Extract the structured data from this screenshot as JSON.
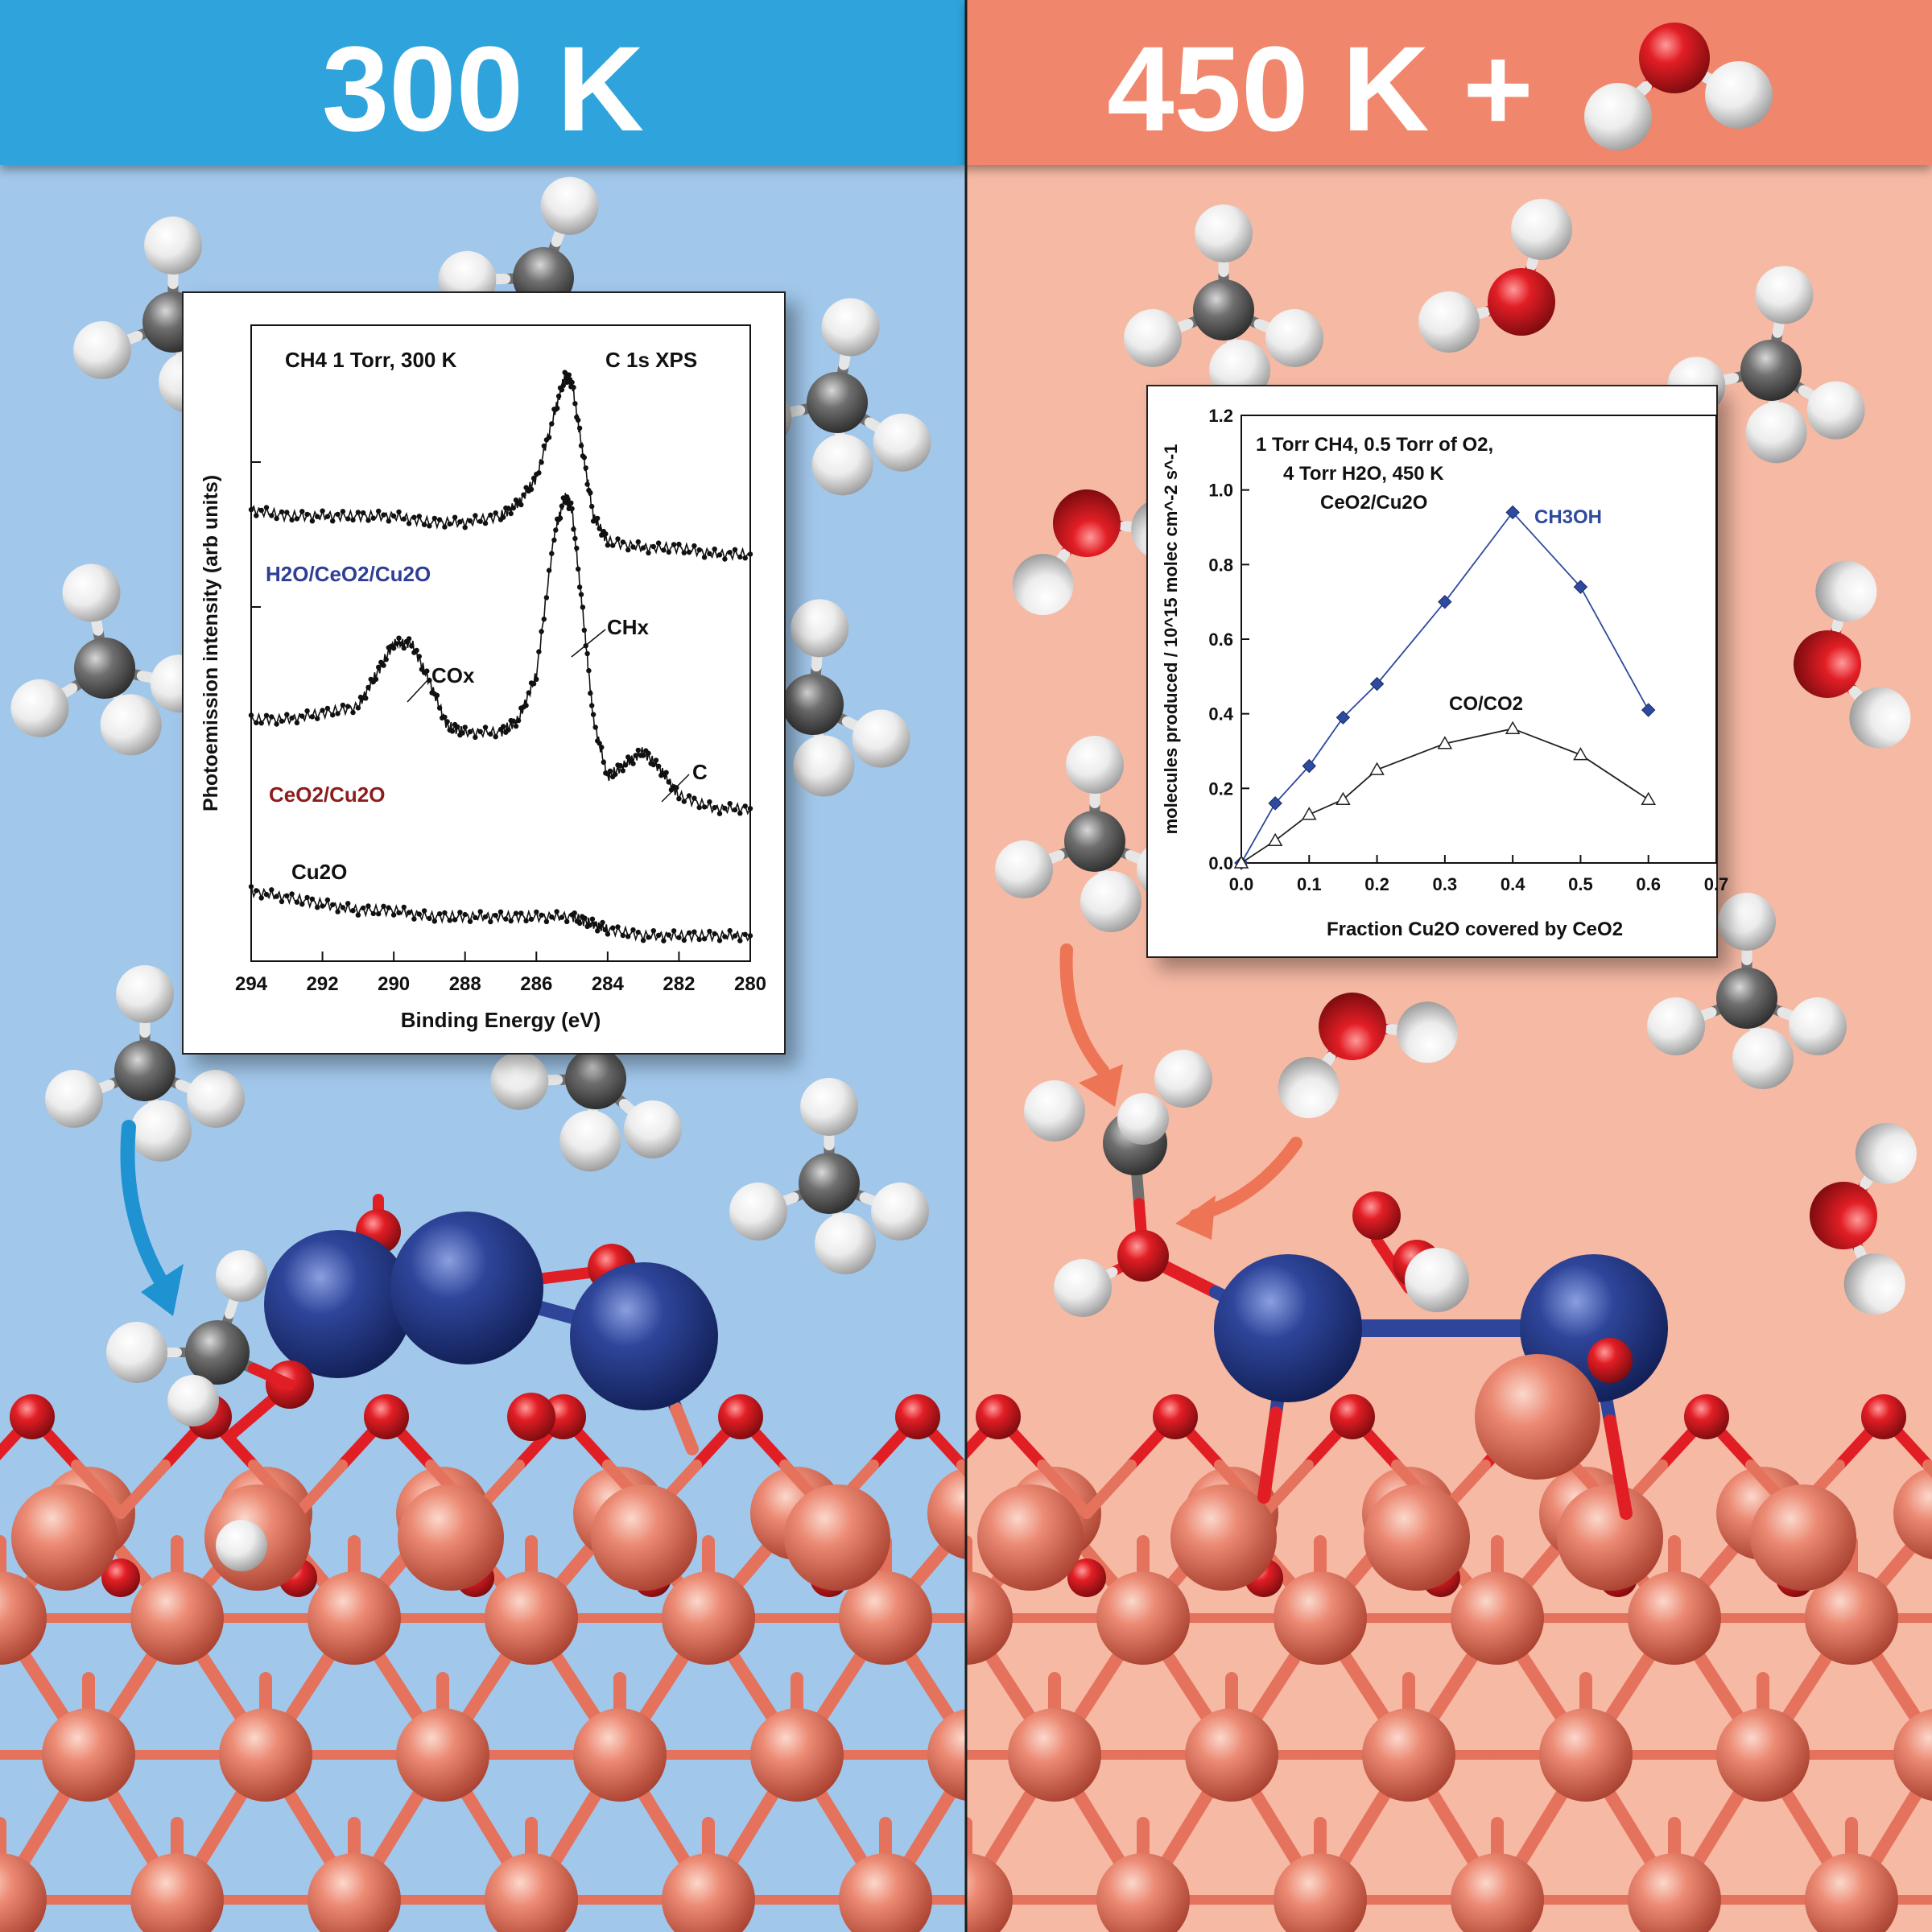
{
  "left_panel": {
    "header": "300 K",
    "colors": {
      "header_bg": "#2fa3dc",
      "bg": "#a1c7ea",
      "arrow": "#1f93d2"
    }
  },
  "right_panel": {
    "header": "450 K +",
    "colors": {
      "header_bg": "#f0866c",
      "bg": "#f6b9a4",
      "arrow": "#ee7456"
    }
  },
  "atom_colors": {
    "Cu": "#e5725c",
    "O": "#e21e25",
    "Ce": "#2e459a",
    "C": "#6f6f6f",
    "H": "#f2f2f2"
  },
  "chart_data": [
    {
      "type": "line",
      "title_left": "CH4 1 Torr, 300 K",
      "title_right": "C 1s  XPS",
      "xlabel": "Binding Energy (eV)",
      "ylabel": "Photoemission intensity (arb units)",
      "xlim": [
        294,
        280
      ],
      "x_reversed": true,
      "xticks": [
        294,
        292,
        290,
        288,
        286,
        284,
        282,
        280
      ],
      "annotations": [
        "COx",
        "CHx",
        "C"
      ],
      "series": [
        {
          "name": "H2O/CeO2/Cu2O",
          "color": "#2e3f95",
          "x": [
            294,
            293,
            292,
            291,
            290,
            289,
            288,
            287,
            286.5,
            286,
            285.5,
            285.2,
            285,
            284.7,
            284.4,
            284,
            283,
            282,
            281,
            280
          ],
          "y": [
            0.71,
            0.7,
            0.7,
            0.7,
            0.7,
            0.69,
            0.69,
            0.7,
            0.72,
            0.76,
            0.86,
            0.92,
            0.91,
            0.8,
            0.7,
            0.66,
            0.65,
            0.65,
            0.64,
            0.64
          ]
        },
        {
          "name": "CeO2/Cu2O",
          "color": "#8c1d1d",
          "x": [
            294,
            293,
            292,
            291,
            290.5,
            290,
            289.5,
            289,
            288.5,
            288,
            287,
            286.5,
            286,
            285.5,
            285.2,
            285,
            284.7,
            284.4,
            284,
            283.5,
            283,
            282.5,
            282,
            281,
            280
          ],
          "y": [
            0.38,
            0.38,
            0.39,
            0.4,
            0.45,
            0.5,
            0.5,
            0.44,
            0.37,
            0.36,
            0.36,
            0.38,
            0.45,
            0.67,
            0.73,
            0.71,
            0.55,
            0.38,
            0.29,
            0.31,
            0.33,
            0.3,
            0.26,
            0.24,
            0.24
          ]
        },
        {
          "name": "Cu2O",
          "color": "#111111",
          "x": [
            294,
            293,
            292,
            291,
            290,
            289,
            288,
            287,
            286,
            285,
            284.5,
            284,
            283,
            282,
            281,
            280
          ],
          "y": [
            0.11,
            0.1,
            0.09,
            0.08,
            0.08,
            0.07,
            0.07,
            0.07,
            0.07,
            0.07,
            0.06,
            0.05,
            0.04,
            0.04,
            0.04,
            0.04
          ]
        }
      ]
    },
    {
      "type": "line",
      "notes": [
        "1 Torr CH4, 0.5 Torr of O2,",
        "4 Torr H2O, 450 K",
        "CeO2/Cu2O"
      ],
      "xlabel": "Fraction Cu2O covered by CeO2",
      "ylabel": "molecules produced / 10^15 molec cm^-2 s^-1",
      "xlim": [
        0,
        0.7
      ],
      "ylim": [
        0,
        1.2
      ],
      "xticks": [
        0.0,
        0.1,
        0.2,
        0.3,
        0.4,
        0.5,
        0.6,
        0.7
      ],
      "yticks": [
        0.0,
        0.2,
        0.4,
        0.6,
        0.8,
        1.0,
        1.2
      ],
      "series": [
        {
          "name": "CH3OH",
          "color": "#2e4a9e",
          "marker": "diamond",
          "x": [
            0,
            0.05,
            0.1,
            0.15,
            0.2,
            0.3,
            0.4,
            0.5,
            0.6
          ],
          "y": [
            0.0,
            0.16,
            0.26,
            0.39,
            0.48,
            0.7,
            0.94,
            0.74,
            0.41
          ]
        },
        {
          "name": "CO/CO2",
          "color": "#222222",
          "marker": "triangle",
          "x": [
            0,
            0.05,
            0.1,
            0.15,
            0.2,
            0.3,
            0.4,
            0.5,
            0.6
          ],
          "y": [
            0.0,
            0.06,
            0.13,
            0.17,
            0.25,
            0.32,
            0.36,
            0.29,
            0.17
          ]
        }
      ]
    }
  ]
}
